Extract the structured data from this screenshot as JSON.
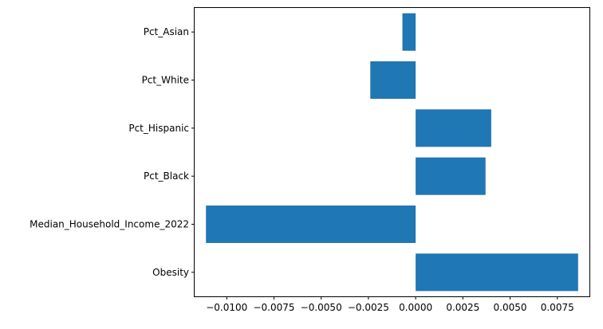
{
  "chart_data": {
    "type": "bar",
    "orientation": "horizontal",
    "categories": [
      "Obesity",
      "Median_Household_Income_2022",
      "Pct_Black",
      "Pct_Hispanic",
      "Pct_White",
      "Pct_Asian"
    ],
    "values": [
      0.0086,
      -0.0111,
      0.0037,
      0.004,
      -0.0024,
      -0.0007
    ],
    "xlim": [
      -0.0117,
      0.0092
    ],
    "xticks": [
      -0.01,
      -0.0075,
      -0.005,
      -0.0025,
      0.0,
      0.0025,
      0.005,
      0.0075
    ],
    "xtick_labels": [
      "−0.0100",
      "−0.0075",
      "−0.0050",
      "−0.0025",
      "0.0000",
      "0.0025",
      "0.0050",
      "0.0075"
    ],
    "title": "",
    "xlabel": "",
    "ylabel": "",
    "grid": false,
    "bar_color": "#1f77b4"
  }
}
